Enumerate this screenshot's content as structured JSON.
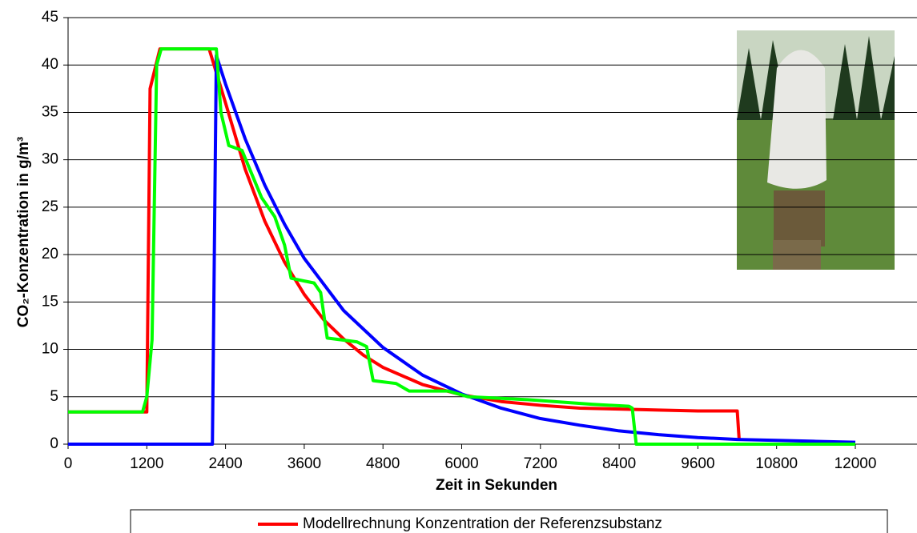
{
  "chart_data": {
    "type": "line",
    "xlabel": "Zeit in Sekunden",
    "ylabel": "CO₂-Konzentration in g/m³",
    "xlim": [
      0,
      12940
    ],
    "xticks": [
      0,
      1200,
      2400,
      3600,
      4800,
      6000,
      7200,
      8400,
      9600,
      10800,
      12000
    ],
    "ylim": [
      0,
      45
    ],
    "yticks": [
      0,
      5,
      10,
      15,
      20,
      25,
      30,
      35,
      40,
      45
    ],
    "grid": true,
    "legend": "bottom",
    "series": [
      {
        "name": "Modellrechnung Konzentration der Referenzsubstanz",
        "color": "#ff0000",
        "x": [
          0,
          1200,
          1250,
          1400,
          2150,
          2400,
          2700,
          3000,
          3300,
          3600,
          3900,
          4200,
          4500,
          4800,
          5400,
          6000,
          6600,
          7200,
          7800,
          8400,
          9000,
          9600,
          10200,
          10230
        ],
        "values": [
          3.4,
          3.4,
          37.5,
          41.7,
          41.7,
          36.0,
          29.0,
          23.5,
          19.2,
          15.8,
          13.1,
          11.1,
          9.4,
          8.1,
          6.3,
          5.2,
          4.5,
          4.1,
          3.8,
          3.7,
          3.6,
          3.5,
          3.5,
          0.4
        ]
      },
      {
        "color": "#0000ff",
        "x": [
          0,
          2200,
          2260,
          2400,
          2700,
          3000,
          3300,
          3600,
          4200,
          4800,
          5400,
          6000,
          6600,
          7200,
          7800,
          8400,
          9000,
          9600,
          10200,
          10800,
          11400,
          12000
        ],
        "values": [
          0,
          0,
          41,
          38.0,
          32.2,
          27.3,
          23.2,
          19.6,
          14.1,
          10.2,
          7.3,
          5.3,
          3.8,
          2.7,
          2.0,
          1.4,
          1.0,
          0.7,
          0.5,
          0.4,
          0.3,
          0.2
        ]
      },
      {
        "color": "#00ff00",
        "x": [
          0,
          1135,
          1200,
          1280,
          1350,
          1420,
          2260,
          2330,
          2450,
          2650,
          2950,
          3150,
          3300,
          3400,
          3750,
          3850,
          3950,
          4400,
          4550,
          4650,
          5000,
          5200,
          5800,
          6100,
          7000,
          8000,
          8550,
          8600,
          8660,
          12000
        ],
        "values": [
          3.4,
          3.4,
          5,
          11,
          40,
          41.7,
          41.7,
          35,
          31.5,
          31,
          26,
          24,
          21,
          17.5,
          17,
          16,
          11.2,
          10.8,
          10.3,
          6.7,
          6.4,
          5.6,
          5.6,
          5.0,
          4.7,
          4.2,
          4.0,
          3.8,
          0,
          0
        ]
      }
    ]
  }
}
